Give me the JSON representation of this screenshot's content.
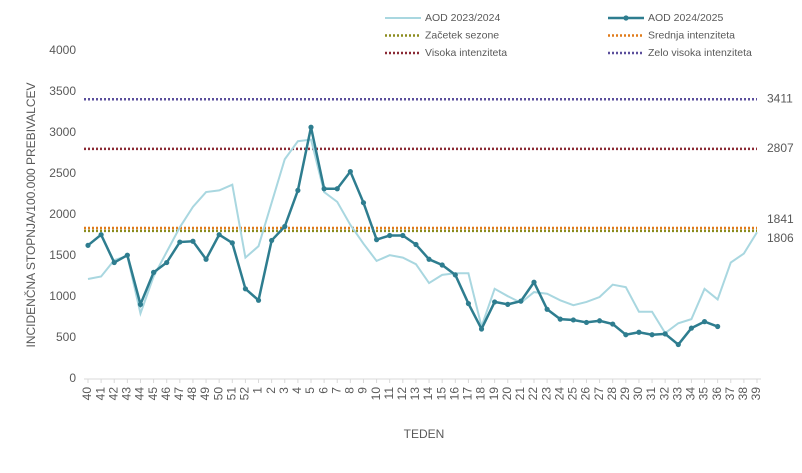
{
  "chart_data": {
    "type": "line",
    "x_label": "TEDEN",
    "y_label": "INCIDENČNA  STOPNJA/100.000  PREBIVALCEV",
    "categories": [
      "40",
      "41",
      "42",
      "43",
      "44",
      "45",
      "46",
      "47",
      "48",
      "49",
      "50",
      "51",
      "52",
      "1",
      "2",
      "3",
      "4",
      "5",
      "6",
      "7",
      "8",
      "9",
      "10",
      "11",
      "12",
      "13",
      "14",
      "15",
      "16",
      "17",
      "18",
      "19",
      "20",
      "21",
      "22",
      "23",
      "24",
      "25",
      "26",
      "27",
      "28",
      "29",
      "30",
      "31",
      "32",
      "33",
      "34",
      "35",
      "36",
      "37",
      "38",
      "39"
    ],
    "series": [
      {
        "name": "AOD 2023/2024",
        "color": "#a9d7e0",
        "markers": false,
        "values": [
          1220,
          1250,
          1450,
          1500,
          800,
          1250,
          1550,
          1850,
          2100,
          2280,
          2300,
          2370,
          1480,
          1620,
          2150,
          2680,
          2900,
          2920,
          2280,
          2160,
          1880,
          1650,
          1440,
          1510,
          1480,
          1400,
          1170,
          1270,
          1290,
          1290,
          640,
          1100,
          1010,
          930,
          1060,
          1040,
          960,
          900,
          940,
          1000,
          1150,
          1120,
          820,
          820,
          560,
          680,
          730,
          1100,
          970,
          1420,
          1530,
          1790
        ]
      },
      {
        "name": "AOD 2024/2025",
        "color": "#2e7d8f",
        "markers": true,
        "values": [
          1630,
          1760,
          1420,
          1510,
          910,
          1300,
          1420,
          1670,
          1680,
          1460,
          1760,
          1660,
          1100,
          960,
          1690,
          1860,
          2300,
          3070,
          2320,
          2320,
          2530,
          2150,
          1700,
          1750,
          1750,
          1640,
          1460,
          1390,
          1270,
          920,
          610,
          940,
          910,
          950,
          1180,
          850,
          730,
          720,
          690,
          710,
          670,
          540,
          570,
          540,
          550,
          420,
          620,
          700,
          640,
          null,
          null,
          null
        ]
      }
    ],
    "thresholds": [
      {
        "name": "Začetek sezone",
        "value": 1806,
        "color": "#8c8c1e"
      },
      {
        "name": "Srednja intenziteta",
        "value": 1841,
        "color": "#e07b1a"
      },
      {
        "name": "Visoka intenziteta",
        "value": 2807,
        "color": "#8b2a35"
      },
      {
        "name": "Zelo visoka intenziteta",
        "value": 3411,
        "color": "#5b4f9c"
      }
    ],
    "ylim": [
      0,
      4000
    ],
    "yticks": [
      0,
      500,
      1000,
      1500,
      2000,
      2500,
      3000,
      3500,
      4000
    ]
  }
}
